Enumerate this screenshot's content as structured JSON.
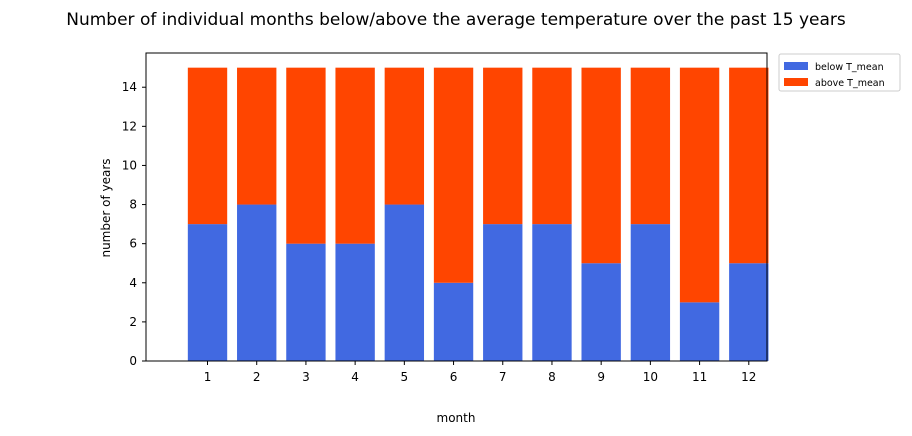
{
  "chart_data": {
    "type": "bar",
    "stacked": true,
    "title": "Number of individual months below/above the average temperature over the past 15 years",
    "xlabel": "month",
    "ylabel": "number of years",
    "categories": [
      "1",
      "2",
      "3",
      "4",
      "5",
      "6",
      "7",
      "8",
      "9",
      "10",
      "11",
      "12"
    ],
    "series": [
      {
        "name": "below T_mean",
        "color": "#4169e1",
        "values": [
          7,
          8,
          6,
          6,
          8,
          4,
          7,
          7,
          5,
          7,
          3,
          5
        ]
      },
      {
        "name": "above T_mean",
        "color": "#ff4500",
        "values": [
          8,
          7,
          9,
          9,
          7,
          11,
          8,
          8,
          10,
          8,
          12,
          10
        ]
      }
    ],
    "ylim": [
      0,
      15.75
    ],
    "yticks": [
      "0",
      "2",
      "4",
      "6",
      "8",
      "10",
      "12",
      "14"
    ],
    "grid": false,
    "legend_position": "outside-top-right"
  }
}
